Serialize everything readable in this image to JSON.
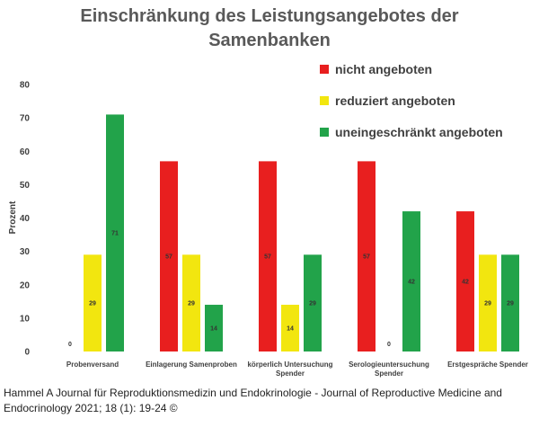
{
  "chart_data": {
    "type": "bar",
    "title": [
      "Einschränkung des Leistungsangebotes der",
      "Samenbanken"
    ],
    "ylabel": "Prozent",
    "xlabel": "",
    "ylim": [
      0,
      80
    ],
    "yticks": [
      0,
      10,
      20,
      30,
      40,
      50,
      60,
      70,
      80
    ],
    "grid": false,
    "legend_position": "top-right",
    "categories": [
      [
        "Probenversand"
      ],
      [
        "Einlagerung Samenproben"
      ],
      [
        "körperlich Untersuchung",
        "Spender"
      ],
      [
        "Serologieuntersuchung",
        "Spender"
      ],
      [
        "Erstgespräche Spender"
      ]
    ],
    "series": [
      {
        "name": "nicht angeboten",
        "color": "#e81f1f",
        "values": [
          0,
          57,
          57,
          57,
          42
        ]
      },
      {
        "name": "reduziert angeboten",
        "color": "#f2e60f",
        "values": [
          29,
          29,
          14,
          0,
          29
        ]
      },
      {
        "name": "uneingeschränkt angeboten",
        "color": "#22a34a",
        "values": [
          71,
          14,
          29,
          42,
          29
        ]
      }
    ]
  },
  "caption": "Hammel A Journal für Reproduktionsmedizin und Endokrinologie - Journal of Reproductive Medicine and Endocrinology 2021; 18 (1): 19-24 ©"
}
